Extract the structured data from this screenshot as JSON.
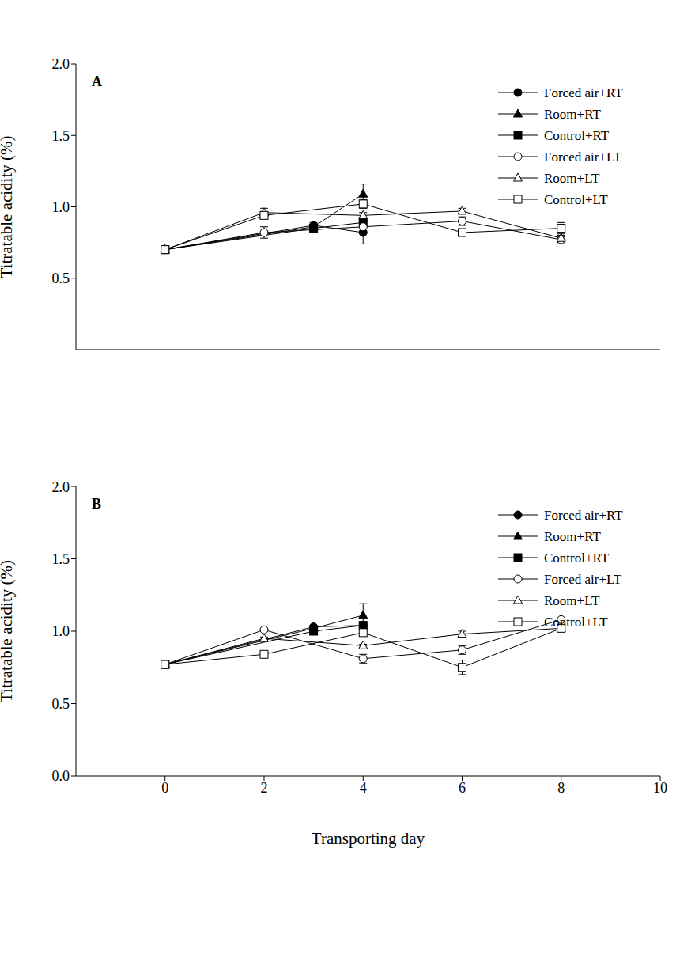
{
  "chart_data": [
    {
      "type": "line",
      "title": "A",
      "y_label": "Titratable acidity (%)",
      "xlim": [
        -1.8,
        10
      ],
      "xticks": [
        0,
        2,
        4,
        6,
        8,
        10
      ],
      "ylim": [
        0,
        2
      ],
      "yticks": [
        0.5,
        {
          "value": 1,
          "label": "1.0"
        },
        1.5,
        {
          "value": 2,
          "label": "2.0"
        }
      ],
      "tick_labels": "y",
      "grid": false,
      "legend": "upper right",
      "series": [
        {
          "name": "Forced air+RT",
          "color": "#000000",
          "marker": "circle",
          "x": [
            0,
            3,
            4
          ],
          "values": [
            0.7,
            0.87,
            0.82
          ],
          "errors": [
            0.02,
            0.02,
            0.08
          ]
        },
        {
          "name": "Room+RT",
          "color": "#000000",
          "marker": "triangle",
          "x": [
            0,
            3,
            4
          ],
          "values": [
            0.7,
            0.86,
            1.09
          ],
          "errors": [
            0.02,
            0.02,
            0.07
          ]
        },
        {
          "name": "Control+RT",
          "color": "#000000",
          "marker": "square",
          "x": [
            0,
            3,
            4
          ],
          "values": [
            0.7,
            0.85,
            0.89
          ],
          "errors": [
            0.02,
            0.02,
            0.03
          ]
        },
        {
          "name": "Forced air+LT",
          "color": "#000000",
          "marker": "open_circle",
          "x": [
            0,
            2,
            4,
            6,
            8
          ],
          "values": [
            0.7,
            0.82,
            0.86,
            0.9,
            0.77
          ],
          "errors": [
            0.02,
            0.04,
            0.03,
            0.03,
            0.02
          ]
        },
        {
          "name": "Room+LT",
          "color": "#000000",
          "marker": "open_triangle",
          "x": [
            0,
            2,
            4,
            6,
            8
          ],
          "values": [
            0.7,
            0.96,
            0.94,
            0.97,
            0.78
          ],
          "errors": [
            0.02,
            0.03,
            0.02,
            0.02,
            0.02
          ]
        },
        {
          "name": "Control+LT",
          "color": "#000000",
          "marker": "open_square",
          "x": [
            0,
            2,
            4,
            6,
            8
          ],
          "values": [
            0.7,
            0.94,
            1.02,
            0.82,
            0.85
          ],
          "errors": [
            0.02,
            0.02,
            0.03,
            0.02,
            0.04
          ]
        }
      ]
    },
    {
      "type": "line",
      "title": "B",
      "x_label": "Transporting day",
      "y_label": "Titratable acidity (%)",
      "xlim": [
        -1.8,
        10
      ],
      "xticks": [
        0,
        2,
        4,
        6,
        8,
        10
      ],
      "ylim": [
        0,
        2
      ],
      "yticks": [
        {
          "value": 0,
          "label": "0.0"
        },
        0.5,
        {
          "value": 1,
          "label": "1.0"
        },
        1.5,
        {
          "value": 2,
          "label": "2.0"
        }
      ],
      "grid": false,
      "legend": "upper right",
      "series": [
        {
          "name": "Forced air+RT",
          "color": "#000000",
          "marker": "circle",
          "x": [
            0,
            3,
            4
          ],
          "values": [
            0.77,
            1.03,
            1.04
          ],
          "errors": [
            0.01,
            0.01,
            0.02
          ]
        },
        {
          "name": "Room+RT",
          "color": "#000000",
          "marker": "triangle",
          "x": [
            0,
            3,
            4
          ],
          "values": [
            0.77,
            1.02,
            1.11
          ],
          "errors": [
            0.01,
            0.01,
            0.08
          ]
        },
        {
          "name": "Control+RT",
          "color": "#000000",
          "marker": "square",
          "x": [
            0,
            3,
            4
          ],
          "values": [
            0.77,
            1.0,
            1.04
          ],
          "errors": [
            0.01,
            0.02,
            0.02
          ]
        },
        {
          "name": "Forced air+LT",
          "color": "#000000",
          "marker": "open_circle",
          "x": [
            0,
            2,
            4,
            6,
            8
          ],
          "values": [
            0.77,
            1.01,
            0.81,
            0.87,
            1.08
          ],
          "errors": [
            0.01,
            0.01,
            0.03,
            0.03,
            0.01
          ]
        },
        {
          "name": "Room+LT",
          "color": "#000000",
          "marker": "open_triangle",
          "x": [
            0,
            2,
            4,
            6,
            8
          ],
          "values": [
            0.77,
            0.95,
            0.9,
            0.98,
            1.02
          ],
          "errors": [
            0.01,
            0.01,
            0.01,
            0.02,
            0.01
          ]
        },
        {
          "name": "Control+LT",
          "color": "#000000",
          "marker": "open_square",
          "x": [
            0,
            2,
            4,
            6,
            8
          ],
          "values": [
            0.77,
            0.84,
            0.99,
            0.75,
            1.02
          ],
          "errors": [
            0.01,
            0.01,
            0.02,
            0.05,
            0.02
          ]
        }
      ]
    }
  ]
}
